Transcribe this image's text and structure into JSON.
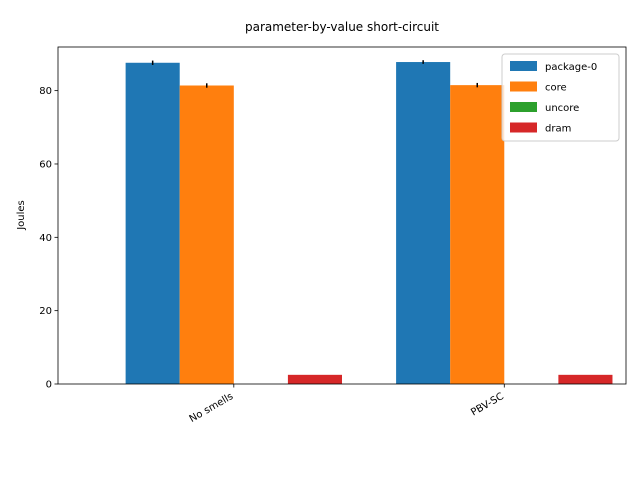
{
  "chart_data": {
    "type": "bar",
    "title": "parameter-by-value short-circuit",
    "xlabel": "",
    "ylabel": "Joules",
    "ylim": [
      0,
      91.9
    ],
    "yticks": [
      0,
      20,
      40,
      60,
      80
    ],
    "categories": [
      "No smells",
      "PBV-SC"
    ],
    "series": [
      {
        "name": "package-0",
        "color": "#1f77b4",
        "values": [
          87.6,
          87.8
        ],
        "errors": [
          0.6,
          0.5
        ]
      },
      {
        "name": "core",
        "color": "#ff7f0e",
        "values": [
          81.4,
          81.5
        ],
        "errors": [
          0.6,
          0.6
        ]
      },
      {
        "name": "uncore",
        "color": "#2ca02c",
        "values": [
          0.0,
          0.0
        ],
        "errors": [
          0,
          0
        ]
      },
      {
        "name": "dram",
        "color": "#d62728",
        "values": [
          2.5,
          2.5
        ],
        "errors": [
          0,
          0
        ]
      }
    ],
    "grid": false,
    "legend": "top-right"
  }
}
